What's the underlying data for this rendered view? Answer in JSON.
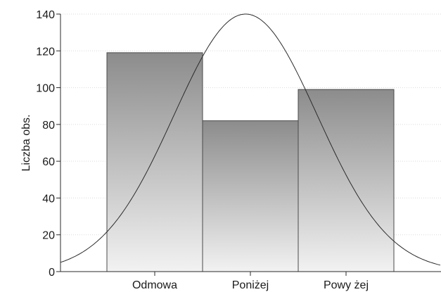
{
  "chart_data": {
    "type": "bar",
    "categories": [
      "Odmowa",
      "Poniżej",
      "Powy żej"
    ],
    "values": [
      119,
      82,
      99
    ],
    "xlabel": "",
    "ylabel": "Liczba obs.",
    "ylim": [
      0,
      140
    ],
    "yticks": [
      "0",
      "20",
      "40",
      "60",
      "80",
      "100",
      "120",
      "140"
    ],
    "grid": true,
    "legend": "none",
    "overlay": {
      "type": "normal-curve",
      "peak_value": 140,
      "peak_category_position": 1.45
    },
    "colors": {
      "bar_top": "#8c8c8c",
      "bar_bottom": "#f2f2f2",
      "bar_stroke": "#4a4a4a",
      "curve": "#2b2b2b",
      "grid": "#d9d9d9",
      "axis": "#2b2b2b"
    }
  }
}
